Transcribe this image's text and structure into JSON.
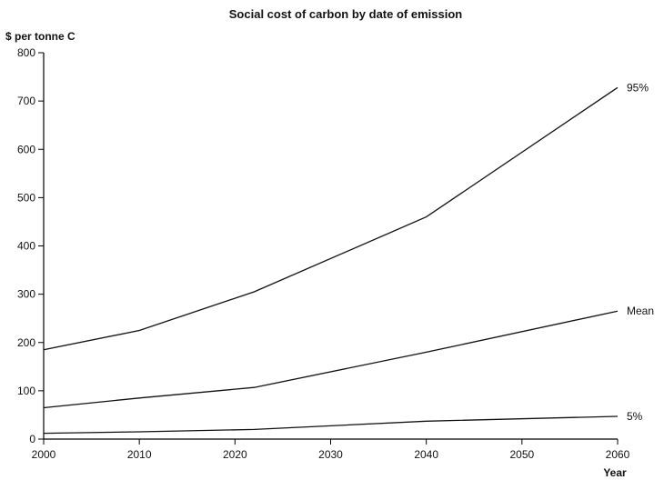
{
  "chart_data": {
    "type": "line",
    "title": "Social cost of carbon by date of emission",
    "ylabel": "$ per tonne C",
    "xlabel": "Year",
    "xlim": [
      2000,
      2060
    ],
    "ylim": [
      0,
      800
    ],
    "xticks": [
      "2000",
      "2010",
      "2020",
      "2030",
      "2040",
      "2050",
      "2060"
    ],
    "yticks": [
      "0",
      "100",
      "200",
      "300",
      "400",
      "500",
      "600",
      "700",
      "800"
    ],
    "grid": false,
    "legend": "inline-right",
    "series": [
      {
        "name": "95%",
        "x": [
          2000,
          2010,
          2022,
          2040,
          2060
        ],
        "values": [
          185,
          225,
          305,
          460,
          728
        ]
      },
      {
        "name": "Mean",
        "x": [
          2000,
          2010,
          2022,
          2040,
          2060
        ],
        "values": [
          65,
          85,
          107,
          180,
          265
        ]
      },
      {
        "name": "5%",
        "x": [
          2000,
          2010,
          2022,
          2040,
          2060
        ],
        "values": [
          12,
          15,
          20,
          37,
          47
        ]
      }
    ]
  }
}
